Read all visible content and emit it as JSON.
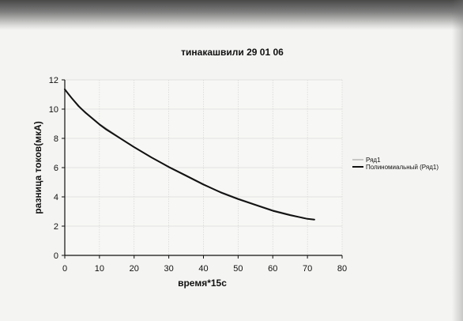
{
  "chart_data": {
    "type": "line",
    "title": "тинакашвили 29 01 06",
    "xlabel": "время*15с",
    "ylabel": "разница токов(мкА)",
    "xlim": [
      0,
      80
    ],
    "ylim": [
      0,
      12
    ],
    "x_ticks": [
      "0",
      "10",
      "20",
      "30",
      "40",
      "50",
      "60",
      "70",
      "80"
    ],
    "y_ticks": [
      "0",
      "2",
      "4",
      "6",
      "8",
      "10",
      "12"
    ],
    "grid": true,
    "legend_position": "right",
    "series": [
      {
        "name": "Ряд1",
        "color": "#9a9a9a",
        "x": [
          0,
          5,
          10,
          15,
          20,
          25,
          30,
          35,
          40,
          45,
          50,
          55,
          60,
          65,
          70,
          72
        ],
        "y": [
          11.3,
          10.0,
          9.0,
          8.2,
          7.4,
          6.7,
          6.0,
          5.4,
          4.8,
          4.35,
          3.9,
          3.5,
          3.1,
          2.8,
          2.5,
          2.45
        ]
      },
      {
        "name": "Полиномиальный (Ряд1)",
        "color": "#111111",
        "x": [
          0,
          1,
          2,
          4,
          6,
          8,
          10,
          12,
          15,
          20,
          25,
          30,
          35,
          40,
          45,
          50,
          55,
          60,
          65,
          70,
          72
        ],
        "y": [
          11.35,
          11.05,
          10.75,
          10.2,
          9.75,
          9.35,
          8.95,
          8.6,
          8.15,
          7.4,
          6.7,
          6.05,
          5.45,
          4.85,
          4.3,
          3.85,
          3.45,
          3.05,
          2.75,
          2.5,
          2.45
        ]
      }
    ]
  }
}
